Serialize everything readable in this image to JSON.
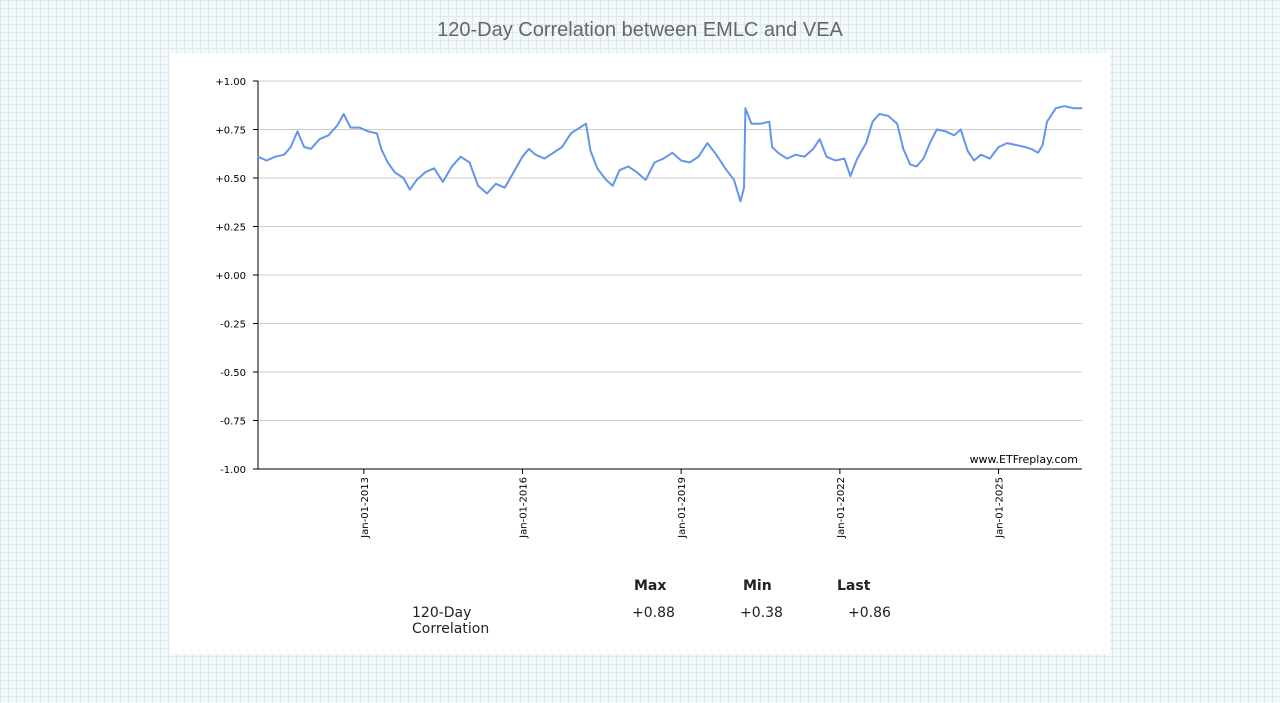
{
  "title": "120-Day Correlation between EMLC and VEA",
  "watermark": "www.ETFreplay.com",
  "colors": {
    "line": "#6495ed",
    "grid": "#cccccc",
    "axis": "#000000"
  },
  "chart_data": {
    "type": "line",
    "title": "120-Day Correlation between EMLC and VEA",
    "xlabel": "",
    "ylabel": "",
    "ylim": [
      -1.0,
      1.0
    ],
    "xlim": [
      "2011-01-01",
      "2026-07-31"
    ],
    "grid": true,
    "y_ticks": [
      "+1.00",
      "+0.75",
      "+0.50",
      "+0.25",
      "+0.00",
      "-0.25",
      "-0.50",
      "-0.75",
      "-1.00"
    ],
    "y_tick_values": [
      1.0,
      0.75,
      0.5,
      0.25,
      0.0,
      -0.25,
      -0.5,
      -0.75,
      -1.0
    ],
    "x_ticks": [
      "Jan-01-2013",
      "Jan-01-2016",
      "Jan-01-2019",
      "Jan-01-2022",
      "Jan-01-2025"
    ],
    "x_tick_dates": [
      "2013-01-01",
      "2016-01-01",
      "2019-01-01",
      "2022-01-01",
      "2025-01-01"
    ],
    "series": [
      {
        "values": [
          [
            "2011-01-01",
            0.61
          ],
          [
            "2011-03-01",
            0.59
          ],
          [
            "2011-05-01",
            0.61
          ],
          [
            "2011-07-01",
            0.62
          ],
          [
            "2011-08-15",
            0.66
          ],
          [
            "2011-10-01",
            0.74
          ],
          [
            "2011-11-15",
            0.66
          ],
          [
            "2012-01-01",
            0.65
          ],
          [
            "2012-03-01",
            0.7
          ],
          [
            "2012-05-01",
            0.72
          ],
          [
            "2012-07-01",
            0.77
          ],
          [
            "2012-08-15",
            0.83
          ],
          [
            "2012-10-01",
            0.76
          ],
          [
            "2012-12-01",
            0.76
          ],
          [
            "2013-02-01",
            0.74
          ],
          [
            "2013-04-01",
            0.73
          ],
          [
            "2013-05-01",
            0.65
          ],
          [
            "2013-06-15",
            0.58
          ],
          [
            "2013-08-01",
            0.53
          ],
          [
            "2013-10-01",
            0.5
          ],
          [
            "2013-11-15",
            0.44
          ],
          [
            "2014-01-01",
            0.49
          ],
          [
            "2014-03-01",
            0.53
          ],
          [
            "2014-05-01",
            0.55
          ],
          [
            "2014-07-01",
            0.48
          ],
          [
            "2014-09-01",
            0.56
          ],
          [
            "2014-11-01",
            0.61
          ],
          [
            "2015-01-01",
            0.58
          ],
          [
            "2015-03-01",
            0.46
          ],
          [
            "2015-05-01",
            0.42
          ],
          [
            "2015-07-01",
            0.47
          ],
          [
            "2015-09-01",
            0.45
          ],
          [
            "2015-11-01",
            0.53
          ],
          [
            "2016-01-01",
            0.61
          ],
          [
            "2016-02-15",
            0.65
          ],
          [
            "2016-04-01",
            0.62
          ],
          [
            "2016-06-01",
            0.6
          ],
          [
            "2016-08-01",
            0.63
          ],
          [
            "2016-10-01",
            0.66
          ],
          [
            "2016-12-01",
            0.73
          ],
          [
            "2017-02-01",
            0.76
          ],
          [
            "2017-03-15",
            0.78
          ],
          [
            "2017-04-15",
            0.64
          ],
          [
            "2017-06-01",
            0.55
          ],
          [
            "2017-08-01",
            0.49
          ],
          [
            "2017-09-15",
            0.46
          ],
          [
            "2017-11-01",
            0.54
          ],
          [
            "2018-01-01",
            0.56
          ],
          [
            "2018-03-01",
            0.53
          ],
          [
            "2018-05-01",
            0.49
          ],
          [
            "2018-07-01",
            0.58
          ],
          [
            "2018-09-01",
            0.6
          ],
          [
            "2018-11-01",
            0.63
          ],
          [
            "2019-01-01",
            0.59
          ],
          [
            "2019-03-01",
            0.58
          ],
          [
            "2019-05-01",
            0.61
          ],
          [
            "2019-07-01",
            0.68
          ],
          [
            "2019-09-01",
            0.62
          ],
          [
            "2019-11-01",
            0.55
          ],
          [
            "2020-01-01",
            0.49
          ],
          [
            "2020-02-15",
            0.38
          ],
          [
            "2020-03-10",
            0.45
          ],
          [
            "2020-03-20",
            0.86
          ],
          [
            "2020-05-01",
            0.78
          ],
          [
            "2020-07-01",
            0.78
          ],
          [
            "2020-09-01",
            0.79
          ],
          [
            "2020-09-20",
            0.66
          ],
          [
            "2020-11-01",
            0.63
          ],
          [
            "2021-01-01",
            0.6
          ],
          [
            "2021-03-01",
            0.62
          ],
          [
            "2021-05-01",
            0.61
          ],
          [
            "2021-07-01",
            0.65
          ],
          [
            "2021-08-15",
            0.7
          ],
          [
            "2021-10-01",
            0.61
          ],
          [
            "2021-12-01",
            0.59
          ],
          [
            "2022-02-01",
            0.6
          ],
          [
            "2022-03-15",
            0.51
          ],
          [
            "2022-05-01",
            0.6
          ],
          [
            "2022-07-01",
            0.68
          ],
          [
            "2022-08-15",
            0.79
          ],
          [
            "2022-10-01",
            0.83
          ],
          [
            "2022-12-01",
            0.82
          ],
          [
            "2023-02-01",
            0.78
          ],
          [
            "2023-03-15",
            0.65
          ],
          [
            "2023-05-01",
            0.57
          ],
          [
            "2023-06-15",
            0.56
          ],
          [
            "2023-08-01",
            0.6
          ],
          [
            "2023-09-15",
            0.68
          ],
          [
            "2023-11-01",
            0.75
          ],
          [
            "2024-01-01",
            0.74
          ],
          [
            "2024-03-01",
            0.72
          ],
          [
            "2024-04-15",
            0.75
          ],
          [
            "2024-06-01",
            0.64
          ],
          [
            "2024-07-15",
            0.59
          ],
          [
            "2024-09-01",
            0.62
          ],
          [
            "2024-11-01",
            0.6
          ],
          [
            "2025-01-01",
            0.66
          ],
          [
            "2025-03-01",
            0.68
          ],
          [
            "2025-05-01",
            0.67
          ],
          [
            "2025-07-01",
            0.66
          ],
          [
            "2025-08-15",
            0.65
          ],
          [
            "2025-10-01",
            0.63
          ],
          [
            "2025-11-01",
            0.67
          ],
          [
            "2025-12-01",
            0.79
          ],
          [
            "2026-02-01",
            0.86
          ],
          [
            "2026-04-01",
            0.87
          ],
          [
            "2026-06-01",
            0.86
          ],
          [
            "2026-07-31",
            0.86
          ]
        ]
      }
    ]
  },
  "stats": {
    "headers": [
      "Max",
      "Min",
      "Last"
    ],
    "row_label": "120-Day Correlation",
    "values": [
      "+0.88",
      "+0.38",
      "+0.86"
    ]
  }
}
